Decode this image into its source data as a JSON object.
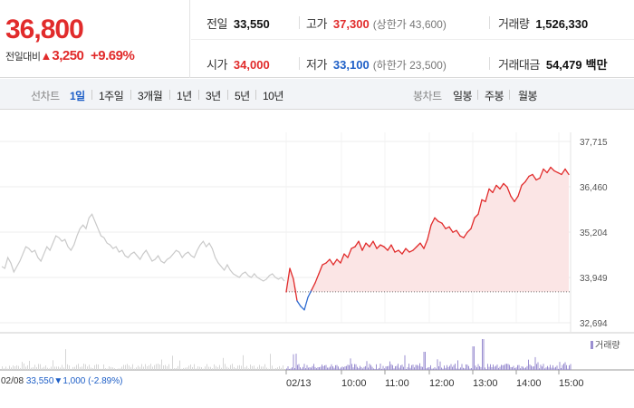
{
  "quote": {
    "price": "36,800",
    "change_label": "전일대비",
    "change_arrow": "▲",
    "change_amount": "3,250",
    "change_percent": "+9.69%",
    "stats": {
      "prev_close_label": "전일",
      "prev_close": "33,550",
      "high_label": "고가",
      "high": "37,300",
      "upper_limit": "(상한가 43,600)",
      "volume_label": "거래량",
      "volume": "1,526,330",
      "open_label": "시가",
      "open": "34,000",
      "low_label": "저가",
      "low": "33,100",
      "lower_limit": "(하한가 23,500)",
      "amount_label": "거래대금",
      "amount": "54,479",
      "amount_unit": "백만"
    }
  },
  "tabs": {
    "line_chart_label": "선차트",
    "line_periods": [
      "1일",
      "1주일",
      "3개월",
      "1년",
      "3년",
      "5년",
      "10년"
    ],
    "active_period": "1일",
    "candle_chart_label": "봉차트",
    "candle_periods": [
      "일봉",
      "주봉",
      "월봉"
    ]
  },
  "chart_data": {
    "type": "line",
    "y_ticks": [
      "37,715",
      "36,460",
      "35,204",
      "33,949",
      "32,694"
    ],
    "ylim": [
      32694,
      37715
    ],
    "reference_price": 33550,
    "x_ticks": [
      "02/13",
      "10:00",
      "11:00",
      "12:00",
      "13:00",
      "14:00",
      "15:00"
    ],
    "previous_day": {
      "date": "02/08",
      "close": "33,550",
      "change_arrow": "▼",
      "change": "1,000",
      "change_percent": "(-2.89%)"
    },
    "today_series": [
      33549,
      34200,
      33900,
      33300,
      33150,
      33050,
      33400,
      33600,
      33800,
      34050,
      34300,
      34350,
      34450,
      34300,
      34450,
      34350,
      34600,
      34500,
      34750,
      34800,
      34950,
      34700,
      34900,
      34800,
      34950,
      34750,
      34850,
      34800,
      34700,
      34850,
      34650,
      34700,
      34600,
      34750,
      34650,
      34700,
      34800,
      34900,
      34750,
      35000,
      35400,
      35600,
      35500,
      35450,
      35300,
      35350,
      35200,
      35250,
      35100,
      35050,
      35200,
      35300,
      35600,
      35700,
      36100,
      36050,
      36400,
      36300,
      36500,
      36400,
      36550,
      36450,
      36200,
      36050,
      36200,
      36500,
      36600,
      36750,
      36800,
      36650,
      36700,
      36950,
      36850,
      37000,
      36900,
      36850,
      36800,
      36950,
      36800
    ],
    "prev_series": [
      34250,
      34200,
      34500,
      34350,
      34100,
      34250,
      34400,
      34600,
      34800,
      34750,
      34650,
      34700,
      34500,
      34400,
      34600,
      34800,
      34700,
      34900,
      35100,
      35050,
      34950,
      35000,
      34800,
      34700,
      34850,
      35100,
      35300,
      35400,
      35300,
      35600,
      35700,
      35500,
      35300,
      35100,
      35050,
      34900,
      34850,
      34750,
      34800,
      34650,
      34700,
      34550,
      34500,
      34600,
      34650,
      34550,
      34450,
      34600,
      34700,
      34550,
      34400,
      34450,
      34550,
      34400,
      34350,
      34450,
      34500,
      34600,
      34700,
      34650,
      34500,
      34600,
      34650,
      34550,
      34500,
      34700,
      34850,
      34950,
      34800,
      34900,
      34750,
      34500,
      34350,
      34250,
      34150,
      34300,
      34150,
      34050,
      34000,
      33950,
      34050,
      34100,
      34000,
      33950,
      34050,
      33950,
      33900,
      33850,
      33900,
      34000,
      34050,
      33950,
      33900,
      33950,
      33850
    ],
    "legend": "거래량",
    "colors": {
      "up": "#e12b2b",
      "down": "#2e6bd1",
      "prev_line": "#c9c9c9",
      "volume": "#9b8fd1",
      "fill": "#fbe5e5"
    }
  }
}
